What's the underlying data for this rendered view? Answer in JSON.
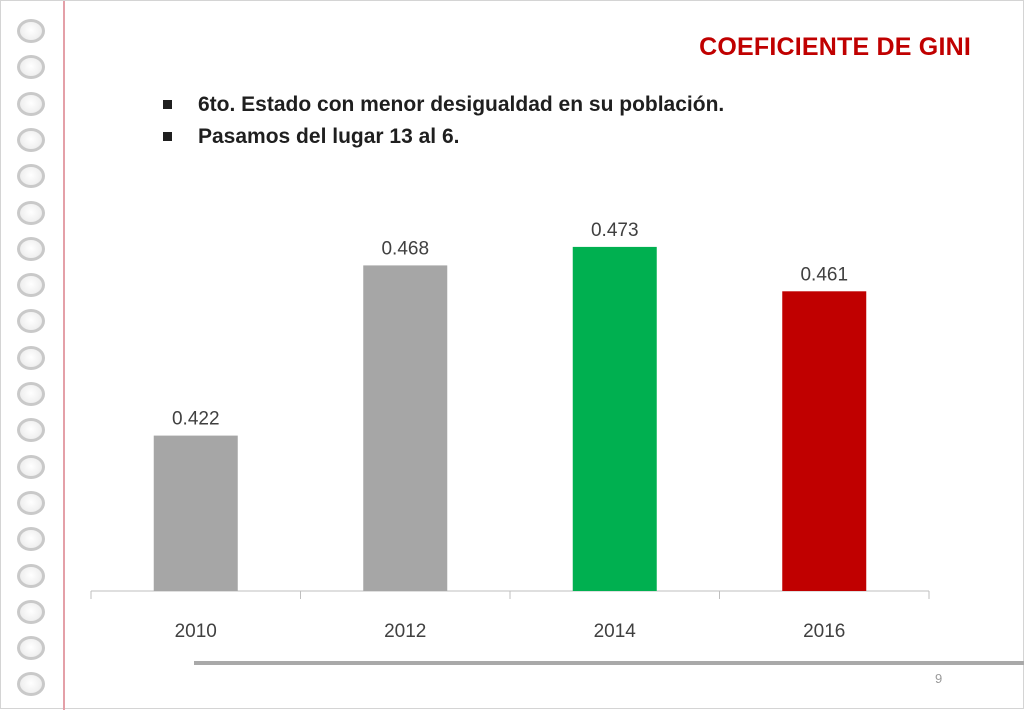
{
  "slide": {
    "title": "COEFICIENTE DE GINI",
    "bullets": [
      "6to. Estado con menor desigualdad en su población.",
      "Pasamos del lugar 13 al 6."
    ],
    "page_number": "9"
  },
  "chart_data": {
    "type": "bar",
    "categories": [
      "2010",
      "2012",
      "2014",
      "2016"
    ],
    "values": [
      0.422,
      0.468,
      0.473,
      0.461
    ],
    "value_labels": [
      "0.422",
      "0.468",
      "0.473",
      "0.461"
    ],
    "colors": [
      "#a6a6a6",
      "#a6a6a6",
      "#00b050",
      "#c00000"
    ],
    "ylim": [
      0.38,
      0.48
    ],
    "grid": false,
    "legend": "none"
  }
}
